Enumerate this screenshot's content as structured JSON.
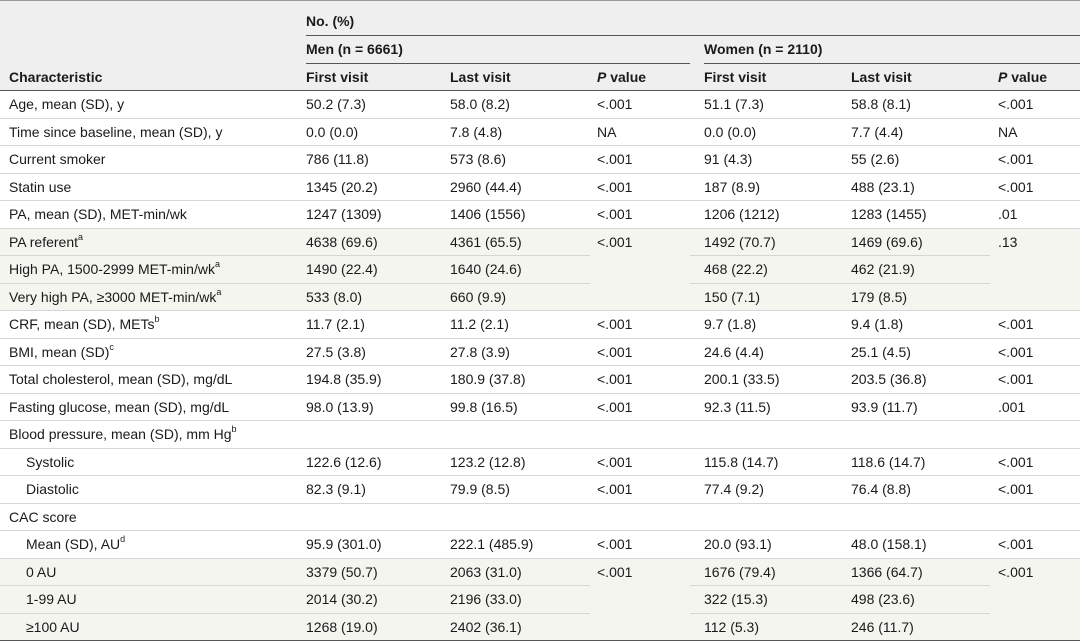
{
  "header": {
    "no_pct": "No. (%)",
    "men": "Men (n = 6661)",
    "women": "Women (n = 2110)",
    "characteristic": "Characteristic",
    "first_visit": "First visit",
    "last_visit": "Last visit",
    "p_italic": "P",
    "value": " value"
  },
  "rows": [
    {
      "label": "Age, mean (SD), y",
      "sup": "",
      "m1": "50.2 (7.3)",
      "m2": "58.0 (8.2)",
      "mp": "<.001",
      "w1": "51.1 (7.3)",
      "w2": "58.8 (8.1)",
      "wp": "<.001"
    },
    {
      "label": "Time since baseline, mean (SD), y",
      "sup": "",
      "m1": "0.0 (0.0)",
      "m2": "7.8 (4.8)",
      "mp": "NA",
      "w1": "0.0 (0.0)",
      "w2": "7.7 (4.4)",
      "wp": "NA"
    },
    {
      "label": "Current smoker",
      "sup": "",
      "m1": "786 (11.8)",
      "m2": "573 (8.6)",
      "mp": "<.001",
      "w1": "91 (4.3)",
      "w2": "55 (2.6)",
      "wp": "<.001"
    },
    {
      "label": "Statin use",
      "sup": "",
      "m1": "1345 (20.2)",
      "m2": "2960 (44.4)",
      "mp": "<.001",
      "w1": "187 (8.9)",
      "w2": "488 (23.1)",
      "wp": "<.001"
    },
    {
      "label": "PA, mean (SD), MET-min/wk",
      "sup": "",
      "m1": "1247 (1309)",
      "m2": "1406 (1556)",
      "mp": "<.001",
      "w1": "1206 (1212)",
      "w2": "1283 (1455)",
      "wp": ".01"
    },
    {
      "label": "PA referent",
      "sup": "a",
      "m1": "4638 (69.6)",
      "m2": "4361 (65.5)",
      "mp": "<.001",
      "w1": "1492 (70.7)",
      "w2": "1469 (69.6)",
      "wp": ".13"
    },
    {
      "label": "High PA, 1500-2999 MET-min/wk",
      "sup": "a",
      "m1": "1490 (22.4)",
      "m2": "1640 (24.6)",
      "mp": "",
      "w1": "468 (22.2)",
      "w2": "462 (21.9)",
      "wp": ""
    },
    {
      "label": "Very high PA, ≥3000 MET-min/wk",
      "sup": "a",
      "m1": "533 (8.0)",
      "m2": "660 (9.9)",
      "mp": "",
      "w1": "150 (7.1)",
      "w2": "179 (8.5)",
      "wp": ""
    },
    {
      "label": "CRF, mean (SD), METs",
      "sup": "b",
      "m1": "11.7 (2.1)",
      "m2": "11.2 (2.1)",
      "mp": "<.001",
      "w1": "9.7 (1.8)",
      "w2": "9.4 (1.8)",
      "wp": "<.001"
    },
    {
      "label": "BMI, mean (SD)",
      "sup": "c",
      "m1": "27.5 (3.8)",
      "m2": "27.8 (3.9)",
      "mp": "<.001",
      "w1": "24.6 (4.4)",
      "w2": "25.1 (4.5)",
      "wp": "<.001"
    },
    {
      "label": "Total cholesterol, mean (SD), mg/dL",
      "sup": "",
      "m1": "194.8 (35.9)",
      "m2": "180.9 (37.8)",
      "mp": "<.001",
      "w1": "200.1 (33.5)",
      "w2": "203.5 (36.8)",
      "wp": "<.001"
    },
    {
      "label": "Fasting glucose, mean (SD), mg/dL",
      "sup": "",
      "m1": "98.0 (13.9)",
      "m2": "99.8 (16.5)",
      "mp": "<.001",
      "w1": "92.3 (11.5)",
      "w2": "93.9 (11.7)",
      "wp": ".001"
    },
    {
      "label": "Blood pressure, mean (SD), mm Hg",
      "sup": "b",
      "m1": "",
      "m2": "",
      "mp": "",
      "w1": "",
      "w2": "",
      "wp": ""
    },
    {
      "label": "Systolic",
      "sup": "",
      "m1": "122.6 (12.6)",
      "m2": "123.2 (12.8)",
      "mp": "<.001",
      "w1": "115.8 (14.7)",
      "w2": "118.6 (14.7)",
      "wp": "<.001"
    },
    {
      "label": "Diastolic",
      "sup": "",
      "m1": "82.3 (9.1)",
      "m2": "79.9 (8.5)",
      "mp": "<.001",
      "w1": "77.4 (9.2)",
      "w2": "76.4 (8.8)",
      "wp": "<.001"
    },
    {
      "label": "CAC score",
      "sup": "",
      "m1": "",
      "m2": "",
      "mp": "",
      "w1": "",
      "w2": "",
      "wp": ""
    },
    {
      "label": "Mean (SD), AU",
      "sup": "d",
      "m1": "95.9 (301.0)",
      "m2": "222.1 (485.9)",
      "mp": "<.001",
      "w1": "20.0 (93.1)",
      "w2": "48.0 (158.1)",
      "wp": "<.001"
    },
    {
      "label": "0 AU",
      "sup": "",
      "m1": "3379 (50.7)",
      "m2": "2063 (31.0)",
      "mp": "<.001",
      "w1": "1676 (79.4)",
      "w2": "1366 (64.7)",
      "wp": "<.001"
    },
    {
      "label": "1-99 AU",
      "sup": "",
      "m1": "2014 (30.2)",
      "m2": "2196 (33.0)",
      "mp": "",
      "w1": "322 (15.3)",
      "w2": "498 (23.6)",
      "wp": ""
    },
    {
      "label": "≥100 AU",
      "sup": "",
      "m1": "1268 (19.0)",
      "m2": "2402 (36.1)",
      "mp": "",
      "w1": "112 (5.3)",
      "w2": "246 (11.7)",
      "wp": ""
    }
  ]
}
